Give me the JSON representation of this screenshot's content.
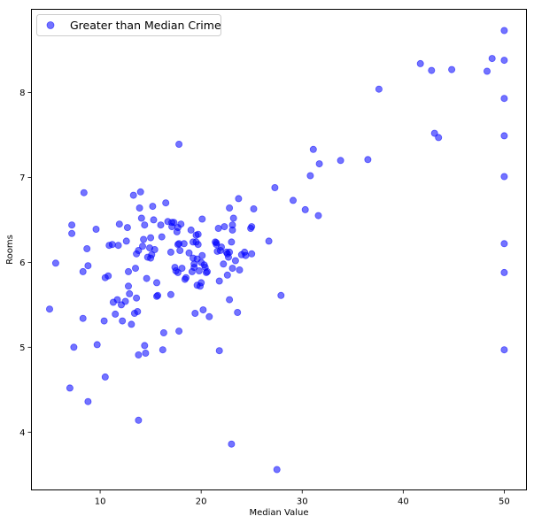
{
  "colors": {
    "points": "#0000ff",
    "point_alpha": 0.55,
    "legend_border": "#cccccc"
  },
  "chart_data": {
    "type": "scatter",
    "title": "",
    "xlabel": "Median Value",
    "ylabel": "Rooms",
    "xlim": [
      3.2,
      52.2
    ],
    "ylim": [
      3.32,
      8.98
    ],
    "xticks": [
      10,
      20,
      30,
      40,
      50
    ],
    "yticks": [
      4,
      5,
      6,
      7,
      8
    ],
    "grid": false,
    "legend_position": "top-left",
    "series": [
      {
        "name": "Greater than Median Crime",
        "points": [
          [
            5.0,
            5.45
          ],
          [
            5.6,
            5.99
          ],
          [
            7.0,
            4.52
          ],
          [
            7.2,
            6.34
          ],
          [
            7.2,
            6.44
          ],
          [
            7.4,
            5.0
          ],
          [
            8.3,
            5.34
          ],
          [
            8.3,
            5.89
          ],
          [
            8.4,
            6.82
          ],
          [
            8.7,
            6.16
          ],
          [
            8.8,
            4.36
          ],
          [
            8.8,
            5.96
          ],
          [
            9.6,
            6.39
          ],
          [
            9.7,
            5.03
          ],
          [
            10.4,
            5.31
          ],
          [
            10.5,
            4.65
          ],
          [
            10.5,
            5.82
          ],
          [
            10.8,
            5.84
          ],
          [
            10.9,
            6.2
          ],
          [
            11.2,
            6.21
          ],
          [
            11.3,
            5.53
          ],
          [
            11.5,
            5.39
          ],
          [
            11.7,
            5.56
          ],
          [
            11.8,
            6.2
          ],
          [
            11.9,
            6.45
          ],
          [
            12.1,
            5.5
          ],
          [
            12.2,
            5.31
          ],
          [
            12.5,
            5.54
          ],
          [
            12.6,
            6.25
          ],
          [
            12.7,
            6.41
          ],
          [
            12.8,
            5.72
          ],
          [
            12.8,
            5.89
          ],
          [
            12.9,
            5.63
          ],
          [
            13.1,
            5.27
          ],
          [
            13.3,
            6.79
          ],
          [
            13.4,
            5.4
          ],
          [
            13.5,
            5.93
          ],
          [
            13.6,
            6.1
          ],
          [
            13.6,
            5.58
          ],
          [
            13.7,
            5.42
          ],
          [
            13.8,
            6.14
          ],
          [
            13.8,
            4.14
          ],
          [
            13.8,
            4.91
          ],
          [
            13.9,
            6.64
          ],
          [
            14.0,
            6.83
          ],
          [
            14.1,
            6.52
          ],
          [
            14.2,
            6.19
          ],
          [
            14.3,
            6.27
          ],
          [
            14.4,
            5.02
          ],
          [
            14.4,
            6.44
          ],
          [
            14.5,
            4.93
          ],
          [
            14.6,
            5.81
          ],
          [
            14.7,
            6.06
          ],
          [
            14.9,
            6.17
          ],
          [
            15.0,
            6.29
          ],
          [
            15.0,
            6.05
          ],
          [
            15.1,
            6.09
          ],
          [
            15.2,
            6.66
          ],
          [
            15.3,
            6.5
          ],
          [
            15.4,
            6.15
          ],
          [
            15.6,
            5.6
          ],
          [
            15.6,
            5.76
          ],
          [
            15.7,
            5.61
          ],
          [
            16.0,
            6.44
          ],
          [
            16.1,
            6.3
          ],
          [
            16.2,
            4.97
          ],
          [
            16.3,
            5.17
          ],
          [
            16.5,
            6.7
          ],
          [
            16.7,
            6.48
          ],
          [
            17.0,
            6.12
          ],
          [
            17.0,
            5.62
          ],
          [
            17.1,
            6.47
          ],
          [
            17.1,
            6.42
          ],
          [
            17.3,
            6.47
          ],
          [
            17.4,
            5.94
          ],
          [
            17.5,
            5.9
          ],
          [
            17.6,
            6.36
          ],
          [
            17.7,
            6.41
          ],
          [
            17.7,
            6.21
          ],
          [
            17.7,
            5.88
          ],
          [
            17.8,
            7.39
          ],
          [
            17.8,
            6.22
          ],
          [
            17.8,
            5.19
          ],
          [
            17.9,
            6.14
          ],
          [
            18.0,
            6.45
          ],
          [
            18.1,
            5.93
          ],
          [
            18.3,
            6.22
          ],
          [
            18.4,
            5.8
          ],
          [
            18.5,
            5.82
          ],
          [
            18.8,
            6.11
          ],
          [
            19.0,
            6.38
          ],
          [
            19.1,
            5.89
          ],
          [
            19.2,
            6.24
          ],
          [
            19.2,
            6.05
          ],
          [
            19.3,
            5.94
          ],
          [
            19.3,
            5.98
          ],
          [
            19.4,
            5.4
          ],
          [
            19.5,
            6.24
          ],
          [
            19.5,
            6.32
          ],
          [
            19.6,
            6.04
          ],
          [
            19.6,
            5.73
          ],
          [
            19.7,
            6.33
          ],
          [
            19.7,
            6.21
          ],
          [
            19.8,
            5.9
          ],
          [
            19.9,
            5.72
          ],
          [
            20.0,
            5.76
          ],
          [
            20.0,
            6.0
          ],
          [
            20.1,
            6.08
          ],
          [
            20.1,
            6.51
          ],
          [
            20.2,
            5.44
          ],
          [
            20.3,
            5.97
          ],
          [
            20.4,
            5.94
          ],
          [
            20.5,
            5.88
          ],
          [
            20.6,
            5.89
          ],
          [
            20.8,
            5.36
          ],
          [
            21.4,
            6.24
          ],
          [
            21.5,
            6.21
          ],
          [
            21.5,
            6.23
          ],
          [
            21.6,
            6.13
          ],
          [
            21.7,
            6.4
          ],
          [
            21.8,
            5.78
          ],
          [
            21.8,
            4.96
          ],
          [
            21.9,
            6.14
          ],
          [
            22.0,
            6.18
          ],
          [
            22.2,
            5.98
          ],
          [
            22.3,
            6.42
          ],
          [
            22.5,
            6.12
          ],
          [
            22.6,
            6.1
          ],
          [
            22.6,
            5.85
          ],
          [
            22.7,
            6.06
          ],
          [
            22.8,
            6.64
          ],
          [
            22.8,
            6.12
          ],
          [
            22.8,
            5.56
          ],
          [
            23.0,
            6.24
          ],
          [
            23.0,
            3.86
          ],
          [
            23.1,
            6.38
          ],
          [
            23.1,
            5.93
          ],
          [
            23.1,
            6.44
          ],
          [
            23.2,
            6.52
          ],
          [
            23.4,
            6.02
          ],
          [
            23.6,
            5.41
          ],
          [
            23.7,
            6.75
          ],
          [
            23.8,
            5.91
          ],
          [
            24.0,
            6.09
          ],
          [
            24.3,
            6.12
          ],
          [
            24.4,
            6.08
          ],
          [
            24.9,
            6.4
          ],
          [
            25.0,
            6.42
          ],
          [
            25.0,
            6.1
          ],
          [
            25.2,
            6.63
          ],
          [
            26.7,
            6.25
          ],
          [
            27.3,
            6.88
          ],
          [
            27.5,
            3.56
          ],
          [
            27.9,
            5.61
          ],
          [
            29.1,
            6.73
          ],
          [
            30.3,
            6.62
          ],
          [
            30.8,
            7.02
          ],
          [
            31.1,
            7.33
          ],
          [
            31.6,
            6.55
          ],
          [
            31.7,
            7.16
          ],
          [
            33.8,
            7.2
          ],
          [
            36.5,
            7.21
          ],
          [
            37.6,
            8.04
          ],
          [
            41.7,
            8.34
          ],
          [
            42.8,
            8.26
          ],
          [
            43.1,
            7.52
          ],
          [
            43.5,
            7.47
          ],
          [
            44.8,
            8.27
          ],
          [
            48.3,
            8.25
          ],
          [
            48.8,
            8.4
          ],
          [
            50.0,
            8.73
          ],
          [
            50.0,
            8.38
          ],
          [
            50.0,
            7.93
          ],
          [
            50.0,
            7.49
          ],
          [
            50.0,
            7.01
          ],
          [
            50.0,
            6.22
          ],
          [
            50.0,
            5.88
          ],
          [
            50.0,
            4.97
          ]
        ]
      }
    ]
  }
}
